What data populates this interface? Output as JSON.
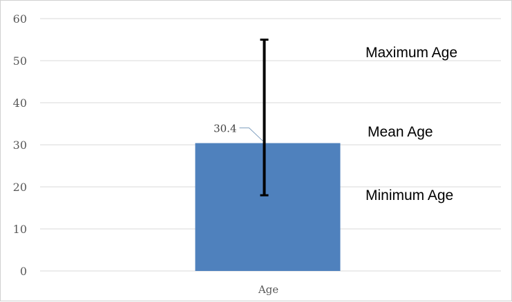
{
  "chart_data": {
    "type": "bar",
    "categories": [
      "Age"
    ],
    "values": [
      30.4
    ],
    "error_bar": {
      "min": 18,
      "max": 55
    },
    "data_labels": [
      "30.4"
    ],
    "y_ticks": [
      "0",
      "10",
      "20",
      "30",
      "40",
      "50",
      "60"
    ],
    "ylim": [
      0,
      60
    ],
    "grid": true,
    "legend": "none",
    "title": "",
    "xlabel": "",
    "ylabel": "",
    "annotations": {
      "max": "Maximum Age",
      "mean": "Mean Age",
      "min": "Minimum Age"
    },
    "colors": {
      "bar": "#4f81bd",
      "grid": "#d9d9d9",
      "error_bar": "#000000"
    }
  }
}
